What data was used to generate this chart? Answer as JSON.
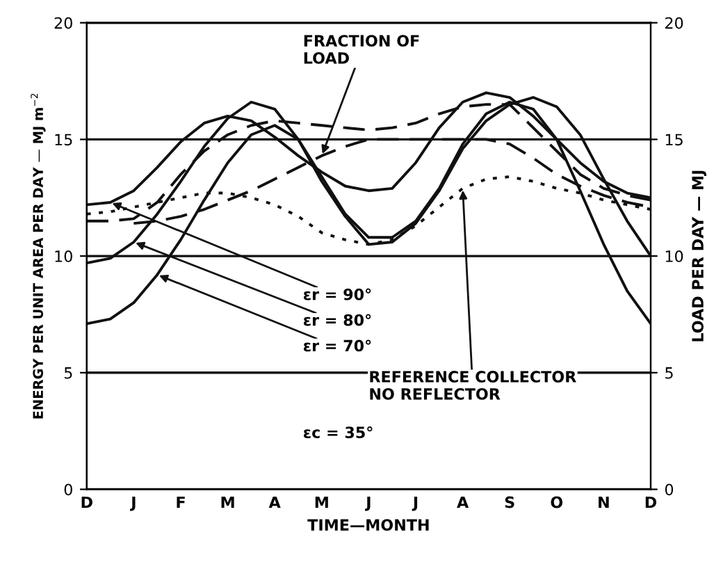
{
  "chart_data": {
    "type": "line",
    "xlabel": "TIME—MONTH",
    "ylabel": "ENERGY PER UNIT AREA PER DAY — MJ m$^{−2}$",
    "y2label": "LOAD PER DAY — MJ",
    "categories": [
      "D",
      null,
      "J",
      null,
      "F",
      null,
      "M",
      null,
      "A",
      null,
      "M",
      null,
      "J",
      null,
      "J",
      null,
      "A",
      null,
      "S",
      null,
      "O",
      null,
      "N",
      null,
      "D"
    ],
    "ylim": [
      0,
      20
    ],
    "yticks": [
      0,
      5,
      10,
      15,
      20
    ],
    "y2lim": [
      0,
      20
    ],
    "y2ticks": [
      0,
      5,
      10,
      15,
      20
    ],
    "grid": "y",
    "series": [
      {
        "name": "εr = 90°",
        "color": "#111111",
        "line_style": "solid",
        "values": [
          12.2,
          12.3,
          12.8,
          13.8,
          14.9,
          15.7,
          16.0,
          15.8,
          15.1,
          14.3,
          13.6,
          13.0,
          12.8,
          12.9,
          14.0,
          15.5,
          16.6,
          17.0,
          16.8,
          16.0,
          15.0,
          14.0,
          13.2,
          12.7,
          12.5
        ]
      },
      {
        "name": "εr = 80°",
        "color": "#111111",
        "line_style": "solid",
        "values": [
          9.7,
          9.9,
          10.6,
          11.8,
          13.2,
          14.7,
          15.9,
          16.6,
          16.3,
          15.0,
          13.2,
          11.7,
          10.5,
          10.6,
          11.4,
          12.8,
          14.6,
          15.8,
          16.5,
          16.8,
          16.4,
          15.2,
          13.3,
          11.5,
          10.0
        ]
      },
      {
        "name": "εr = 70°",
        "color": "#111111",
        "line_style": "solid",
        "values": [
          7.1,
          7.3,
          8.0,
          9.2,
          10.7,
          12.4,
          14.0,
          15.2,
          15.6,
          15.0,
          13.4,
          11.8,
          10.8,
          10.8,
          11.5,
          12.9,
          14.8,
          16.1,
          16.6,
          16.3,
          15.0,
          12.8,
          10.5,
          8.5,
          7.1
        ]
      },
      {
        "name": "REFERENCE COLLECTOR\nNO REFLECTOR",
        "color": "#111111",
        "line_style": "dotted",
        "values": [
          11.8,
          11.9,
          12.1,
          12.3,
          12.5,
          12.7,
          12.7,
          12.5,
          12.2,
          11.7,
          11.0,
          10.7,
          10.5,
          10.7,
          11.3,
          12.1,
          12.9,
          13.3,
          13.4,
          13.2,
          12.9,
          12.7,
          12.4,
          12.2,
          12.0
        ]
      },
      {
        "name": "FRACTION OF\nLOAD",
        "color": "#111111",
        "line_style": "dashed",
        "values": [
          null,
          null,
          11.4,
          11.5,
          11.7,
          12.0,
          12.4,
          12.8,
          13.3,
          13.8,
          14.3,
          14.7,
          15.0,
          15.0,
          15.0,
          15.0,
          15.0,
          15.0,
          14.8,
          14.2,
          13.5,
          13.0,
          12.6,
          12.3,
          12.1
        ]
      },
      {
        "color": "#111111",
        "line_style": "dashed",
        "values": [
          11.5,
          11.5,
          11.6,
          12.3,
          13.5,
          14.5,
          15.2,
          15.6,
          15.8,
          15.7,
          15.6,
          15.5,
          15.4,
          15.5,
          15.7,
          16.1,
          16.4,
          16.5,
          16.5,
          15.5,
          14.5,
          13.5,
          12.9,
          12.6,
          12.4
        ]
      }
    ],
    "annotations": [
      "εc = 35°"
    ]
  }
}
